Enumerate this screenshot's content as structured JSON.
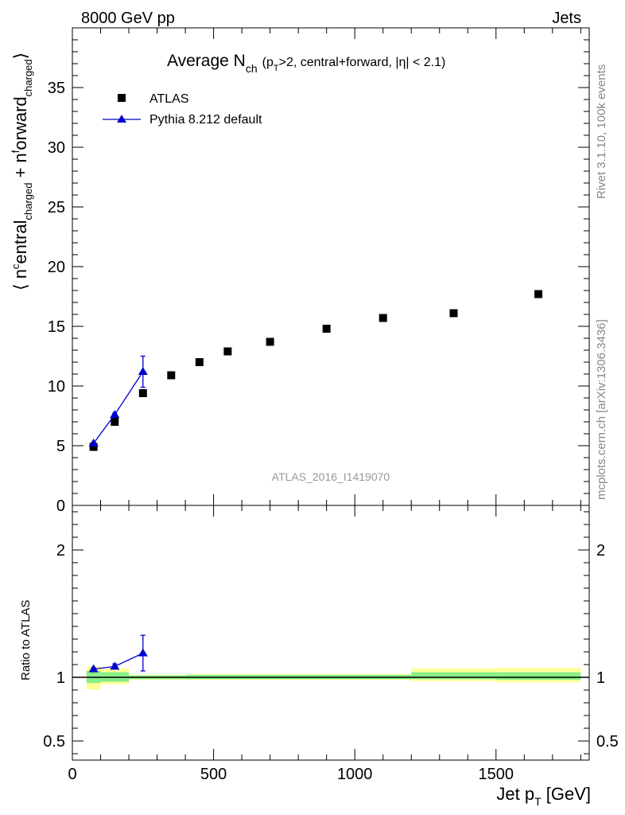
{
  "header": {
    "energy": "8000 GeV pp",
    "process": "Jets",
    "rivet": "Rivet 3.1.10,  100k events",
    "mcplots": "mcplots.cern.ch [arXiv:1306.3436]"
  },
  "chart_data": [
    {
      "type": "scatter",
      "title": "Average N",
      "title_sub": "ch",
      "title_cut_open": "(p",
      "title_cut_sub": "T",
      "title_cut_rest": ">2, central+forward, |η| < 2.1)",
      "analysis_id": "ATLAS_2016_I1419070",
      "ylabel": "⟨ n^central_charged + n^forward_charged ⟩",
      "ylabel_parts": {
        "open": "⟨ n",
        "sup1": "c",
        "t1": "entral",
        "sub1": "charged",
        "mid": " + n",
        "sup2": "f",
        "t2": "orward",
        "sub2": "charged",
        "close": "⟩"
      },
      "xlim": [
        0,
        1830
      ],
      "ylim": [
        0,
        40
      ],
      "yticks": [
        0,
        5,
        10,
        15,
        20,
        25,
        30,
        35
      ],
      "legend_position": "top-left",
      "series": [
        {
          "name": "ATLAS",
          "marker": "square",
          "color": "#000000",
          "x": [
            75,
            150,
            250,
            350,
            450,
            550,
            700,
            900,
            1100,
            1350,
            1650
          ],
          "y": [
            4.9,
            7.0,
            9.4,
            10.9,
            12.0,
            12.9,
            13.7,
            14.8,
            15.7,
            16.1,
            17.7
          ]
        },
        {
          "name": "Pythia 8.212 default",
          "marker": "triangle",
          "color": "#0000cc",
          "x": [
            75,
            150,
            250
          ],
          "y": [
            5.2,
            7.6,
            11.2
          ],
          "yerr": [
            0.1,
            0.15,
            1.3
          ]
        }
      ]
    },
    {
      "type": "scatter",
      "ylabel": "Ratio to ATLAS",
      "xlabel": "Jet p",
      "xlabel_sub": "T",
      "xlabel_unit": " [GeV]",
      "xlim": [
        0,
        1830
      ],
      "ylim": [
        0.35,
        2.35
      ],
      "yticks": [
        0.5,
        1,
        2
      ],
      "xticks": [
        0,
        500,
        1000,
        1500
      ],
      "reference_line": 1.0,
      "bands": [
        {
          "x0": 50,
          "x1": 100,
          "stat_lo": 0.955,
          "stat_hi": 1.05,
          "tot_lo": 0.905,
          "tot_hi": 1.085
        },
        {
          "x0": 100,
          "x1": 200,
          "stat_lo": 0.965,
          "stat_hi": 1.04,
          "tot_lo": 0.945,
          "tot_hi": 1.07
        },
        {
          "x0": 200,
          "x1": 400,
          "stat_lo": 0.985,
          "stat_hi": 1.015,
          "tot_lo": 0.98,
          "tot_hi": 1.02
        },
        {
          "x0": 400,
          "x1": 1200,
          "stat_lo": 0.985,
          "stat_hi": 1.02,
          "tot_lo": 0.98,
          "tot_hi": 1.025
        },
        {
          "x0": 1200,
          "x1": 1500,
          "stat_lo": 0.985,
          "stat_hi": 1.04,
          "tot_lo": 0.97,
          "tot_hi": 1.07
        },
        {
          "x0": 1500,
          "x1": 1800,
          "stat_lo": 0.98,
          "stat_hi": 1.04,
          "tot_lo": 0.96,
          "tot_hi": 1.075
        }
      ],
      "band_colors": {
        "stat": "#88ee88",
        "total": "#ffff99"
      },
      "series": [
        {
          "name": "Pythia 8.212 default",
          "marker": "triangle",
          "color": "#0000cc",
          "x": [
            75,
            150,
            250
          ],
          "y": [
            1.065,
            1.085,
            1.19
          ],
          "yerr": [
            0.01,
            0.02,
            0.14
          ]
        }
      ]
    }
  ]
}
